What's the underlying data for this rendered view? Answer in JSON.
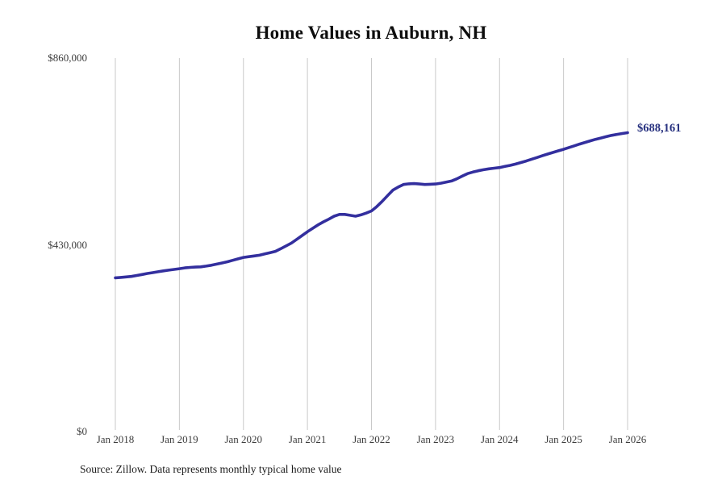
{
  "page": {
    "source_note": "Source: Zillow. Data represents monthly typical home value"
  },
  "colors": {
    "line": "#332f9e",
    "annotation_text": "#27317f",
    "gridline": "#c9c9c9",
    "tick_text": "#3c3c3c",
    "title_text": "#0d0d0d",
    "background": "#ffffff"
  },
  "chart_data": {
    "type": "line",
    "title": "Home Values in Auburn, NH",
    "xlabel": "",
    "ylabel": "",
    "grid": "vertical-only",
    "legend": "none",
    "ylim": [
      0,
      860000
    ],
    "y_ticks": [
      {
        "label": "$0",
        "value": 0
      },
      {
        "label": "$430,000",
        "value": 430000
      },
      {
        "label": "$860,000",
        "value": 860000
      }
    ],
    "x_tick_labels": [
      "Jan 2018",
      "Jan 2019",
      "Jan 2020",
      "Jan 2021",
      "Jan 2022",
      "Jan 2023",
      "Jan 2024",
      "Jan 2025",
      "Jan 2026"
    ],
    "annotation": {
      "label": "$688,161",
      "value": 688161,
      "position": "end-of-line"
    },
    "series": [
      {
        "name": "Monthly typical home value",
        "start_month": "Jan 2018",
        "end_month": "Jan 2026",
        "interval": "monthly",
        "values": [
          354000,
          355000,
          356100,
          357200,
          359400,
          361700,
          364000,
          366000,
          368000,
          370000,
          371700,
          373400,
          375100,
          376800,
          378000,
          378700,
          379200,
          381000,
          383000,
          385600,
          388200,
          391000,
          394300,
          397600,
          401000,
          402700,
          404400,
          406000,
          409000,
          412000,
          415000,
          421000,
          427500,
          434000,
          442600,
          451300,
          460000,
          468000,
          476000,
          483000,
          489000,
          496000,
          500000,
          500000,
          498000,
          496000,
          499000,
          503000,
          508000,
          518000,
          530000,
          543000,
          556000,
          563000,
          569000,
          570500,
          571000,
          570000,
          569000,
          569500,
          570000,
          572000,
          574500,
          577000,
          582000,
          588000,
          594000,
          597500,
          600500,
          603000,
          605000,
          606500,
          608000,
          610500,
          613000,
          616000,
          619500,
          623000,
          627000,
          631000,
          635000,
          639000,
          642700,
          646400,
          650000,
          654000,
          658000,
          662000,
          665700,
          669400,
          673000,
          676000,
          679000,
          682000,
          684200,
          686300,
          688161
        ]
      }
    ]
  }
}
